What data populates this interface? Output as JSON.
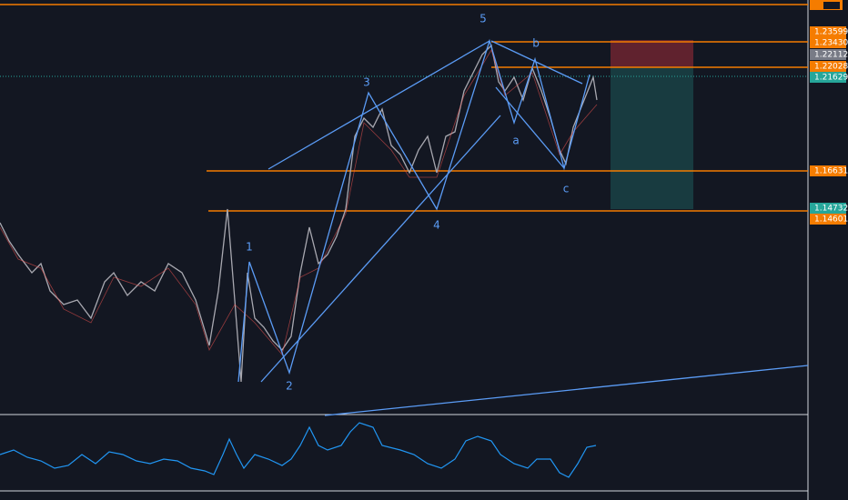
{
  "price_labels": [
    "1.23599",
    "1.23430",
    "1.22112",
    "1.22028",
    "1.21629",
    "1.16631",
    "1.14732",
    "1.14601"
  ],
  "wave_labels": [
    "1",
    "2",
    "3",
    "4",
    "5",
    "a",
    "b",
    "c"
  ]
}
